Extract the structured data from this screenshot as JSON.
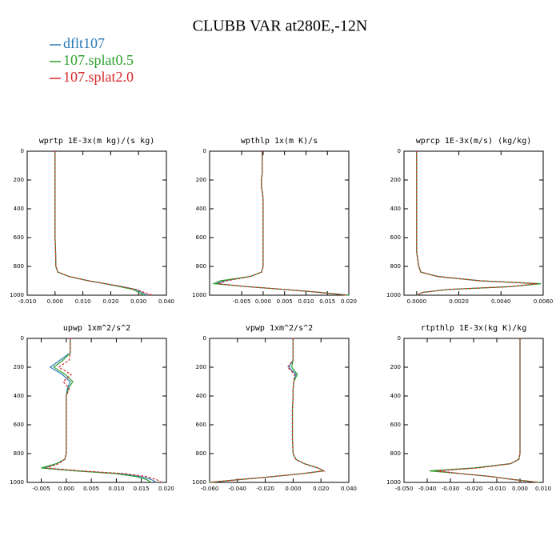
{
  "title": "CLUBB VAR at280E,-12N",
  "chart_data": [
    {
      "type": "line",
      "title": "wprtp  1E-3x(m kg)/(s kg)",
      "y": [
        0,
        100,
        150,
        200,
        250,
        300,
        350,
        400,
        500,
        600,
        700,
        800,
        840,
        870,
        900,
        920,
        940,
        960,
        980,
        1000
      ],
      "ylim": [
        0,
        1000
      ],
      "y_inverted": true,
      "yticks": [
        0,
        200,
        400,
        600,
        800,
        1000
      ],
      "xlim": [
        -0.01,
        0.04
      ],
      "xticks": [
        {
          "value": -0.01,
          "label": "-0.010"
        },
        {
          "value": 0,
          "label": "0.000"
        },
        {
          "value": 0.01,
          "label": "0.010"
        },
        {
          "value": 0.02,
          "label": "0.020"
        },
        {
          "value": 0.03,
          "label": "0.030"
        },
        {
          "value": 0.04,
          "label": "0.040"
        }
      ],
      "series": [
        {
          "name": "dflt107",
          "color": "#2a7ab8",
          "dashed": false,
          "values": [
            0,
            0,
            0,
            0,
            0,
            0,
            0,
            0,
            0,
            0,
            0.0002,
            0.0003,
            0.001,
            0.005,
            0.012,
            0.018,
            0.024,
            0.029,
            0.031,
            0.033
          ]
        },
        {
          "name": "107.splat0.5",
          "color": "#2ca02c",
          "dashed": false,
          "values": [
            0,
            0,
            0,
            0,
            0,
            0,
            0,
            0,
            0,
            0,
            0.0002,
            0.0003,
            0.001,
            0.005,
            0.012,
            0.018,
            0.023,
            0.028,
            0.03,
            0.032
          ]
        },
        {
          "name": "107.splat2.0",
          "color": "#d62728",
          "dashed": true,
          "values": [
            0,
            0,
            0,
            0,
            0,
            0,
            0,
            0,
            0,
            0,
            0.0002,
            0.0003,
            0.001,
            0.005,
            0.012,
            0.018,
            0.024,
            0.029,
            0.032,
            0.035
          ]
        }
      ]
    },
    {
      "type": "line",
      "title": "wpthlp  1x(m K)/s",
      "y": [
        0,
        100,
        150,
        200,
        250,
        300,
        350,
        400,
        500,
        600,
        700,
        800,
        840,
        870,
        900,
        920,
        940,
        960,
        980,
        1000
      ],
      "ylim": [
        0,
        1000
      ],
      "y_inverted": true,
      "yticks": [
        0,
        200,
        400,
        600,
        800,
        1000
      ],
      "xlim": [
        -0.0125,
        0.02
      ],
      "xticks": [
        {
          "value": -0.005,
          "label": "-0.005"
        },
        {
          "value": 0,
          "label": "0.000"
        },
        {
          "value": 0.005,
          "label": "0.005"
        },
        {
          "value": 0.01,
          "label": "0.010"
        },
        {
          "value": 0.015,
          "label": "0.015"
        },
        {
          "value": 0.02,
          "label": "0.020"
        }
      ],
      "series": [
        {
          "name": "dflt107",
          "color": "#2a7ab8",
          "dashed": false,
          "values": [
            -0.0002,
            -0.0002,
            -0.0002,
            -0.0004,
            -0.0004,
            -0.0001,
            0,
            0,
            0,
            0,
            0,
            0,
            -0.0004,
            -0.003,
            -0.009,
            -0.011,
            -0.004,
            0.005,
            0.013,
            0.02
          ]
        },
        {
          "name": "107.splat0.5",
          "color": "#2ca02c",
          "dashed": false,
          "values": [
            -0.0002,
            -0.0002,
            -0.0002,
            -0.0004,
            -0.0004,
            -0.0001,
            0,
            0,
            0,
            0,
            0,
            0,
            -0.0004,
            -0.003,
            -0.01,
            -0.0115,
            -0.004,
            0.005,
            0.013,
            0.02
          ]
        },
        {
          "name": "107.splat2.0",
          "color": "#d62728",
          "dashed": true,
          "values": [
            -0.0002,
            -0.0002,
            -0.0002,
            -0.0004,
            -0.0004,
            -0.0001,
            0,
            0,
            0,
            0,
            0,
            0,
            -0.0004,
            -0.003,
            -0.0085,
            -0.0105,
            -0.004,
            0.005,
            0.013,
            0.0195
          ]
        }
      ]
    },
    {
      "type": "line",
      "title": "wprcp  1E-3x(m/s) (kg/kg)",
      "y": [
        0,
        100,
        150,
        200,
        250,
        300,
        350,
        400,
        500,
        600,
        700,
        800,
        840,
        870,
        900,
        920,
        940,
        960,
        980,
        1000
      ],
      "ylim": [
        0,
        1000
      ],
      "y_inverted": true,
      "yticks": [
        0,
        200,
        400,
        600,
        800,
        1000
      ],
      "xlim": [
        -0.0006,
        0.006
      ],
      "xticks": [
        {
          "value": 0,
          "label": "0.0000"
        },
        {
          "value": 0.002,
          "label": "0.0020"
        },
        {
          "value": 0.004,
          "label": "0.0040"
        },
        {
          "value": 0.006,
          "label": "0.0060"
        }
      ],
      "series": [
        {
          "name": "dflt107",
          "color": "#2a7ab8",
          "dashed": false,
          "values": [
            0,
            0,
            0,
            0,
            0,
            0,
            0,
            0,
            0,
            0,
            0,
            0.0001,
            0.0002,
            0.001,
            0.003,
            0.0058,
            0.0045,
            0.0015,
            0.0003,
            0
          ]
        },
        {
          "name": "107.splat0.5",
          "color": "#2ca02c",
          "dashed": false,
          "values": [
            0,
            0,
            0,
            0,
            0,
            0,
            0,
            0,
            0,
            0,
            0,
            0.0001,
            0.0002,
            0.001,
            0.003,
            0.0059,
            0.0045,
            0.0015,
            0.0003,
            0
          ]
        },
        {
          "name": "107.splat2.0",
          "color": "#d62728",
          "dashed": true,
          "values": [
            0,
            0,
            0,
            0,
            0,
            0,
            0,
            0,
            0,
            0,
            0,
            0.0001,
            0.0002,
            0.001,
            0.003,
            0.0057,
            0.0045,
            0.0015,
            0.0003,
            0
          ]
        }
      ]
    },
    {
      "type": "line",
      "title": "upwp  1xm^2/s^2",
      "y": [
        0,
        100,
        150,
        200,
        250,
        300,
        350,
        400,
        500,
        600,
        700,
        800,
        840,
        870,
        900,
        920,
        940,
        960,
        980,
        1000
      ],
      "ylim": [
        0,
        1000
      ],
      "y_inverted": true,
      "yticks": [
        0,
        200,
        400,
        600,
        800,
        1000
      ],
      "xlim": [
        -0.0078,
        0.02
      ],
      "xticks": [
        {
          "value": -0.005,
          "label": "-0.005"
        },
        {
          "value": 0,
          "label": "0.000"
        },
        {
          "value": 0.005,
          "label": "0.005"
        },
        {
          "value": 0.01,
          "label": "0.010"
        },
        {
          "value": 0.015,
          "label": "0.015"
        },
        {
          "value": 0.02,
          "label": "0.020"
        }
      ],
      "series": [
        {
          "name": "dflt107",
          "color": "#2a7ab8",
          "dashed": false,
          "values": [
            0.0008,
            0.0008,
            -0.0012,
            -0.0032,
            -0.0008,
            0.0008,
            0.0002,
            0,
            0,
            0,
            0,
            0,
            -0.0003,
            -0.002,
            -0.0045,
            0.002,
            0.011,
            0.015,
            0.017,
            0.018
          ]
        },
        {
          "name": "107.splat0.5",
          "color": "#2ca02c",
          "dashed": false,
          "values": [
            0.0008,
            0.0008,
            -0.0006,
            -0.0025,
            -0.0002,
            0.0013,
            0.0004,
            0,
            0,
            0,
            0,
            0,
            -0.0003,
            -0.002,
            -0.005,
            0.002,
            0.01,
            0.014,
            0.016,
            0.017
          ]
        },
        {
          "name": "107.splat2.0",
          "color": "#d62728",
          "dashed": true,
          "values": [
            0.0008,
            0.0008,
            0.0006,
            -0.0015,
            0.001,
            -0.0006,
            0.0006,
            0,
            0,
            0,
            0,
            0,
            -0.0003,
            -0.0015,
            -0.004,
            0.003,
            0.012,
            0.016,
            0.018,
            0.019
          ]
        }
      ]
    },
    {
      "type": "line",
      "title": "vpwp  1xm^2/s^2",
      "y": [
        0,
        100,
        150,
        200,
        250,
        300,
        350,
        400,
        500,
        600,
        700,
        800,
        840,
        870,
        900,
        920,
        940,
        960,
        980,
        1000
      ],
      "ylim": [
        0,
        1000
      ],
      "y_inverted": true,
      "yticks": [
        0,
        200,
        400,
        600,
        800,
        1000
      ],
      "xlim": [
        -0.06,
        0.04
      ],
      "xticks": [
        {
          "value": -0.06,
          "label": "-0.060"
        },
        {
          "value": -0.04,
          "label": "-0.040"
        },
        {
          "value": -0.02,
          "label": "-0.020"
        },
        {
          "value": 0,
          "label": "0.000"
        },
        {
          "value": 0.02,
          "label": "0.020"
        },
        {
          "value": 0.04,
          "label": "0.040"
        }
      ],
      "series": [
        {
          "name": "dflt107",
          "color": "#2a7ab8",
          "dashed": false,
          "values": [
            0,
            0,
            0,
            -0.003,
            0.002,
            0.0005,
            0,
            0,
            -0.0005,
            -0.0005,
            -0.0005,
            0,
            0.002,
            0.008,
            0.018,
            0.022,
            0.006,
            -0.015,
            -0.038,
            -0.06
          ]
        },
        {
          "name": "107.splat0.5",
          "color": "#2ca02c",
          "dashed": false,
          "values": [
            0,
            0,
            0,
            -0.001,
            0.003,
            0.0005,
            0,
            0,
            -0.0005,
            -0.0005,
            -0.0005,
            0,
            0.002,
            0.008,
            0.018,
            0.022,
            0.006,
            -0.015,
            -0.038,
            -0.06
          ]
        },
        {
          "name": "107.splat2.0",
          "color": "#d62728",
          "dashed": true,
          "values": [
            0,
            0,
            0,
            -0.004,
            0.001,
            0.0005,
            0,
            0,
            -0.0005,
            -0.0005,
            -0.0005,
            0,
            0.002,
            0.008,
            0.018,
            0.022,
            0.006,
            -0.015,
            -0.038,
            -0.06
          ]
        }
      ]
    },
    {
      "type": "line",
      "title": "rtpthlp  1E-3x(kg K)/kg",
      "y": [
        0,
        100,
        150,
        200,
        250,
        300,
        350,
        400,
        500,
        600,
        700,
        800,
        840,
        870,
        900,
        920,
        940,
        960,
        980,
        1000
      ],
      "ylim": [
        0,
        1000
      ],
      "y_inverted": true,
      "yticks": [
        0,
        200,
        400,
        600,
        800,
        1000
      ],
      "xlim": [
        -0.05,
        0.01
      ],
      "xticks": [
        {
          "value": -0.05,
          "label": "-0.050"
        },
        {
          "value": -0.04,
          "label": "-0.040"
        },
        {
          "value": -0.03,
          "label": "-0.030"
        },
        {
          "value": -0.02,
          "label": "-0.020"
        },
        {
          "value": -0.01,
          "label": "-0.010"
        },
        {
          "value": 0,
          "label": "0.000"
        },
        {
          "value": 0.01,
          "label": "0.010"
        }
      ],
      "series": [
        {
          "name": "dflt107",
          "color": "#2a7ab8",
          "dashed": false,
          "values": [
            0,
            0,
            0,
            0,
            0,
            0,
            0,
            0,
            0,
            0,
            0,
            0,
            -0.0005,
            -0.004,
            -0.02,
            -0.037,
            -0.025,
            -0.012,
            -0.003,
            0.008
          ]
        },
        {
          "name": "107.splat0.5",
          "color": "#2ca02c",
          "dashed": false,
          "values": [
            0,
            0,
            0,
            0,
            0,
            0,
            0,
            0,
            0,
            0,
            0,
            0,
            -0.0005,
            -0.004,
            -0.02,
            -0.039,
            -0.025,
            -0.012,
            -0.003,
            0.008
          ]
        },
        {
          "name": "107.splat2.0",
          "color": "#d62728",
          "dashed": true,
          "values": [
            0,
            0,
            0,
            0,
            0,
            0,
            0,
            0,
            0,
            0,
            0,
            0,
            -0.0005,
            -0.004,
            -0.018,
            -0.036,
            -0.025,
            -0.012,
            -0.003,
            0.008
          ]
        }
      ]
    }
  ]
}
